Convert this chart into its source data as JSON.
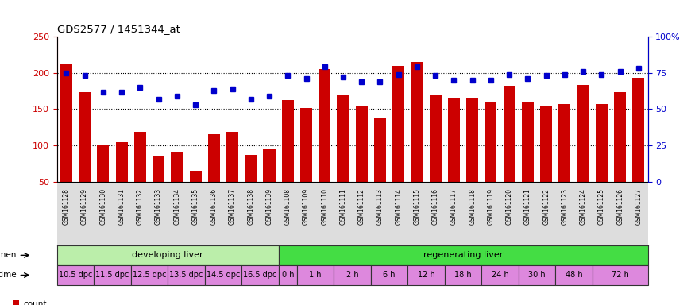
{
  "title": "GDS2577 / 1451344_at",
  "samples": [
    "GSM161128",
    "GSM161129",
    "GSM161130",
    "GSM161131",
    "GSM161132",
    "GSM161133",
    "GSM161134",
    "GSM161135",
    "GSM161136",
    "GSM161137",
    "GSM161138",
    "GSM161139",
    "GSM161108",
    "GSM161109",
    "GSM161110",
    "GSM161111",
    "GSM161112",
    "GSM161113",
    "GSM161114",
    "GSM161115",
    "GSM161116",
    "GSM161117",
    "GSM161118",
    "GSM161119",
    "GSM161120",
    "GSM161121",
    "GSM161122",
    "GSM161123",
    "GSM161124",
    "GSM161125",
    "GSM161126",
    "GSM161127"
  ],
  "counts": [
    213,
    173,
    100,
    105,
    119,
    85,
    90,
    65,
    115,
    119,
    87,
    95,
    162,
    152,
    205,
    170,
    155,
    139,
    210,
    215,
    170,
    165,
    165,
    160,
    182,
    160,
    155,
    157,
    183,
    157,
    173,
    193
  ],
  "percentiles": [
    75,
    73,
    62,
    62,
    65,
    57,
    59,
    53,
    63,
    64,
    57,
    59,
    73,
    71,
    79,
    72,
    69,
    69,
    74,
    79,
    73,
    70,
    70,
    70,
    74,
    71,
    73,
    74,
    76,
    74,
    76,
    78
  ],
  "bar_color": "#cc0000",
  "dot_color": "#0000cc",
  "ylim_left": [
    50,
    250
  ],
  "ylim_right": [
    0,
    100
  ],
  "yticks_left": [
    50,
    100,
    150,
    200,
    250
  ],
  "yticks_right": [
    0,
    25,
    50,
    75,
    100
  ],
  "yticklabels_right": [
    "0",
    "25",
    "50",
    "75",
    "100%"
  ],
  "hlines": [
    100,
    150,
    200
  ],
  "xtick_bg_color": "#dddddd",
  "specimen_groups": [
    {
      "label": "developing liver",
      "start": 0,
      "end": 12,
      "color": "#bbeeaa"
    },
    {
      "label": "regenerating liver",
      "start": 12,
      "end": 32,
      "color": "#44dd44"
    }
  ],
  "time_color": "#dd88dd",
  "time_groups": [
    {
      "label": "10.5 dpc",
      "start": 0,
      "end": 2
    },
    {
      "label": "11.5 dpc",
      "start": 2,
      "end": 4
    },
    {
      "label": "12.5 dpc",
      "start": 4,
      "end": 6
    },
    {
      "label": "13.5 dpc",
      "start": 6,
      "end": 8
    },
    {
      "label": "14.5 dpc",
      "start": 8,
      "end": 10
    },
    {
      "label": "16.5 dpc",
      "start": 10,
      "end": 12
    },
    {
      "label": "0 h",
      "start": 12,
      "end": 13
    },
    {
      "label": "1 h",
      "start": 13,
      "end": 15
    },
    {
      "label": "2 h",
      "start": 15,
      "end": 17
    },
    {
      "label": "6 h",
      "start": 17,
      "end": 19
    },
    {
      "label": "12 h",
      "start": 19,
      "end": 21
    },
    {
      "label": "18 h",
      "start": 21,
      "end": 23
    },
    {
      "label": "24 h",
      "start": 23,
      "end": 25
    },
    {
      "label": "30 h",
      "start": 25,
      "end": 27
    },
    {
      "label": "48 h",
      "start": 27,
      "end": 29
    },
    {
      "label": "72 h",
      "start": 29,
      "end": 32
    }
  ],
  "legend_count_color": "#cc0000",
  "legend_pct_color": "#0000cc",
  "bg_color": "#ffffff",
  "left_tick_color": "#cc0000",
  "right_tick_color": "#0000cc"
}
